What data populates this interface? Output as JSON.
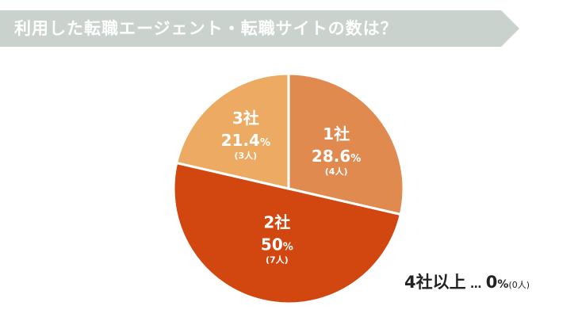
{
  "header": {
    "title": "利用した転職エージェント・転職サイトの数は？",
    "background_color": "#c9d2cd"
  },
  "chart_data": {
    "type": "pie",
    "start_angle_deg": 0,
    "direction": "clockwise",
    "slices": [
      {
        "label": "1社",
        "value": 28.6,
        "percent_text": "28.6",
        "count_text": "(4人)",
        "color": "#e08a50"
      },
      {
        "label": "2社",
        "value": 50,
        "percent_text": "50",
        "count_text": "(7人)",
        "color": "#d2470f"
      },
      {
        "label": "3社",
        "value": 21.4,
        "percent_text": "21.4",
        "count_text": "(3人)",
        "color": "#ecaa62"
      }
    ],
    "percent_unit": "%",
    "label_color": "#ffffff",
    "separator_color": "#ffffff"
  },
  "note": {
    "label": "4社以上",
    "dots": "…",
    "percent": "0",
    "unit": "%",
    "count": "(0人)"
  }
}
